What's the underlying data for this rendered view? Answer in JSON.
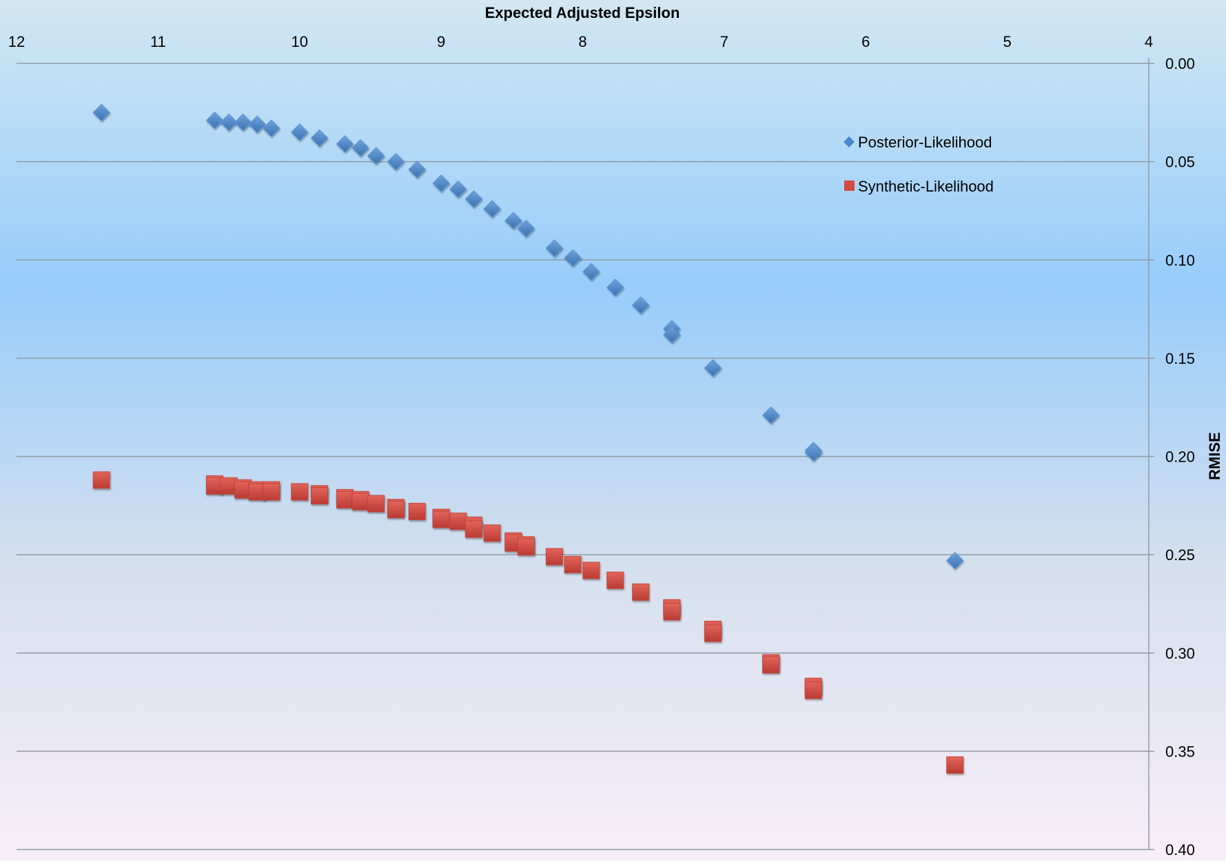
{
  "chart_data": {
    "type": "scatter",
    "title": "",
    "xlabel": "Expected Adjusted Epsilon",
    "ylabel": "RMISE",
    "xlim": [
      12,
      4
    ],
    "ylim": [
      0.0,
      0.4
    ],
    "x_reversed": true,
    "y_reversed": true,
    "x_ticks": [
      "12",
      "11",
      "10",
      "9",
      "8",
      "7",
      "6",
      "5",
      "4"
    ],
    "y_ticks": [
      "0.00",
      "0.05",
      "0.10",
      "0.15",
      "0.20",
      "0.25",
      "0.30",
      "0.35",
      "0.40"
    ],
    "grid": "horizontal",
    "legend_position": "top-right",
    "series": [
      {
        "name": "Posterior-Likelihood",
        "marker": "diamond",
        "color": "#4a86c8",
        "points": [
          [
            11.4,
            0.025
          ],
          [
            10.6,
            0.029
          ],
          [
            10.5,
            0.03
          ],
          [
            10.4,
            0.03
          ],
          [
            10.3,
            0.031
          ],
          [
            10.2,
            0.033
          ],
          [
            10.0,
            0.035
          ],
          [
            9.86,
            0.038
          ],
          [
            9.68,
            0.041
          ],
          [
            9.57,
            0.043
          ],
          [
            9.46,
            0.047
          ],
          [
            9.32,
            0.05
          ],
          [
            9.17,
            0.054
          ],
          [
            9.0,
            0.061
          ],
          [
            8.88,
            0.064
          ],
          [
            8.77,
            0.069
          ],
          [
            8.64,
            0.074
          ],
          [
            8.49,
            0.08
          ],
          [
            8.4,
            0.084
          ],
          [
            8.2,
            0.094
          ],
          [
            8.07,
            0.099
          ],
          [
            7.94,
            0.106
          ],
          [
            7.77,
            0.114
          ],
          [
            7.59,
            0.123
          ],
          [
            7.37,
            0.135
          ],
          [
            7.37,
            0.138
          ],
          [
            7.08,
            0.155
          ],
          [
            6.67,
            0.179
          ],
          [
            6.37,
            0.197
          ],
          [
            6.37,
            0.198
          ],
          [
            5.37,
            0.253
          ]
        ]
      },
      {
        "name": "Synthetic-Likelihood",
        "marker": "square",
        "color": "#d2493f",
        "points": [
          [
            11.4,
            0.212
          ],
          [
            10.6,
            0.214
          ],
          [
            10.6,
            0.215
          ],
          [
            10.5,
            0.215
          ],
          [
            10.4,
            0.216
          ],
          [
            10.4,
            0.217
          ],
          [
            10.3,
            0.217
          ],
          [
            10.3,
            0.218
          ],
          [
            10.2,
            0.217
          ],
          [
            10.2,
            0.218
          ],
          [
            10.0,
            0.218
          ],
          [
            9.86,
            0.219
          ],
          [
            9.86,
            0.22
          ],
          [
            9.68,
            0.221
          ],
          [
            9.68,
            0.222
          ],
          [
            9.57,
            0.222
          ],
          [
            9.57,
            0.223
          ],
          [
            9.46,
            0.224
          ],
          [
            9.32,
            0.226
          ],
          [
            9.32,
            0.227
          ],
          [
            9.17,
            0.228
          ],
          [
            9.0,
            0.231
          ],
          [
            9.0,
            0.232
          ],
          [
            8.88,
            0.233
          ],
          [
            8.77,
            0.235
          ],
          [
            8.77,
            0.237
          ],
          [
            8.64,
            0.239
          ],
          [
            8.49,
            0.243
          ],
          [
            8.49,
            0.244
          ],
          [
            8.4,
            0.245
          ],
          [
            8.4,
            0.246
          ],
          [
            8.2,
            0.251
          ],
          [
            8.07,
            0.255
          ],
          [
            7.94,
            0.258
          ],
          [
            7.77,
            0.263
          ],
          [
            7.59,
            0.269
          ],
          [
            7.37,
            0.277
          ],
          [
            7.37,
            0.279
          ],
          [
            7.08,
            0.288
          ],
          [
            7.08,
            0.29
          ],
          [
            6.67,
            0.305
          ],
          [
            6.67,
            0.306
          ],
          [
            6.37,
            0.317
          ],
          [
            6.37,
            0.319
          ],
          [
            5.37,
            0.357
          ]
        ]
      }
    ]
  }
}
